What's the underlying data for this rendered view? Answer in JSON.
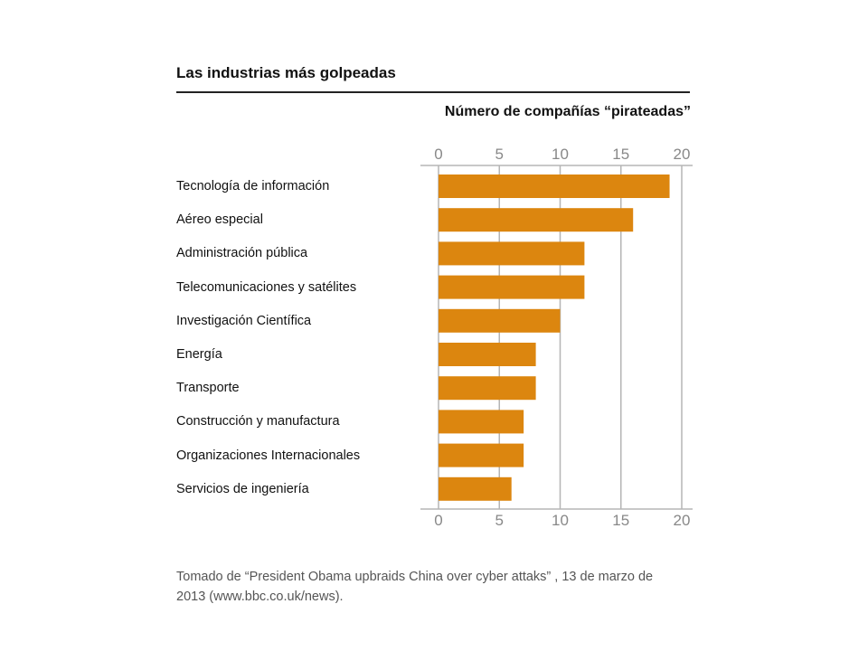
{
  "title": "Las industrias más golpeadas",
  "chart_data": {
    "type": "bar",
    "orientation": "horizontal",
    "title": "Número de compañías “pirateadas”",
    "categories": [
      "Tecnología de información",
      "Aéreo especial",
      "Administración pública",
      "Telecomunicaciones y satélites",
      "Investigación Científica",
      "Energía",
      "Transporte",
      "Construcción y manufactura",
      "Organizaciones Internacionales",
      "Servicios de ingeniería"
    ],
    "values": [
      19,
      16,
      12,
      12,
      10,
      8,
      8,
      7,
      7,
      6
    ],
    "xlim": [
      0,
      20
    ],
    "ticks": [
      "0",
      "5",
      "10",
      "15",
      "20"
    ],
    "grid": true,
    "bar_color": "#dc860f"
  },
  "source_lines": [
    "Tomado de “President Obama upbraids China over cyber attaks” , 13  de  marzo de",
    "2013 (www.bbc.co.uk/news)."
  ]
}
